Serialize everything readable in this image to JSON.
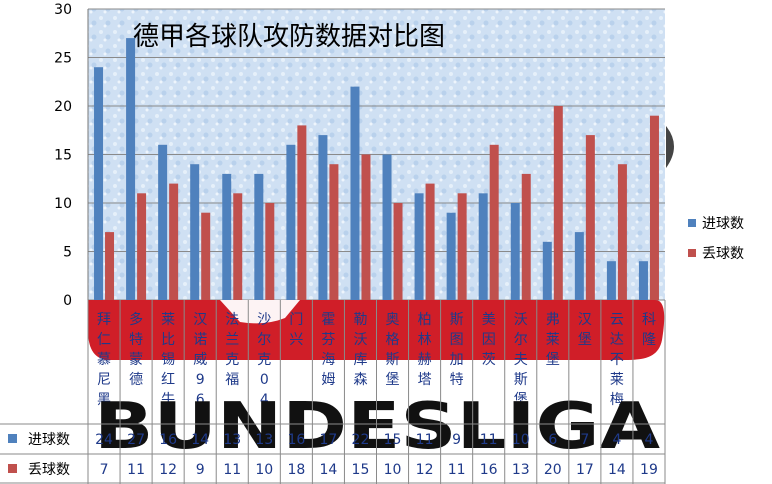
{
  "chart_data": {
    "type": "bar",
    "title": "德甲各球队攻防数据对比图",
    "categories": [
      "拜仁慕尼黑",
      "多特蒙德",
      "莱比锡红牛",
      "汉诺威96",
      "法兰克福",
      "沙尔克04",
      "门兴",
      "霍芬海姆",
      "勒沃库森",
      "奥格斯堡",
      "柏林赫塔",
      "斯图加特",
      "美因茨",
      "沃尔夫斯堡",
      "弗莱堡",
      "汉堡",
      "云达不莱梅",
      "科隆"
    ],
    "series": [
      {
        "name": "进球数",
        "color": "#4f81bd",
        "values": [
          24,
          27,
          16,
          14,
          13,
          13,
          16,
          17,
          22,
          15,
          11,
          9,
          11,
          10,
          6,
          7,
          4,
          4
        ]
      },
      {
        "name": "丢球数",
        "color": "#c0504d",
        "values": [
          7,
          11,
          12,
          9,
          11,
          10,
          18,
          14,
          15,
          10,
          12,
          11,
          16,
          13,
          20,
          17,
          14,
          19
        ]
      }
    ],
    "ylim": [
      0,
      30
    ],
    "yticks": [
      0,
      5,
      10,
      15,
      20,
      25,
      30
    ],
    "grid": true,
    "legend": "right",
    "table": true
  },
  "logo_text": "BUNDESLIGA"
}
